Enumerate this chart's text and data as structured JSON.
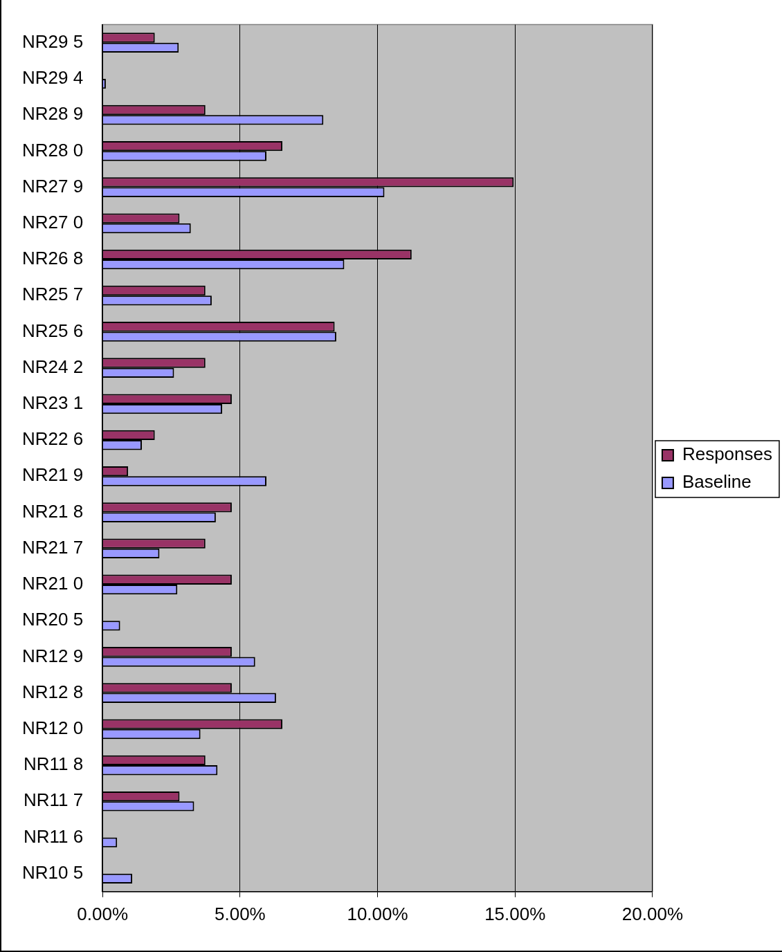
{
  "chart_data": {
    "type": "bar",
    "orientation": "horizontal",
    "categories": [
      "NR29 5",
      "NR29 4",
      "NR28 9",
      "NR28 0",
      "NR27 9",
      "NR27 0",
      "NR26 8",
      "NR25 7",
      "NR25 6",
      "NR24 2",
      "NR23 1",
      "NR22 6",
      "NR21 9",
      "NR21 8",
      "NR21 7",
      "NR21 0",
      "NR20 5",
      "NR12 9",
      "NR12 8",
      "NR12 0",
      "NR11 8",
      "NR11 7",
      "NR11 6",
      "NR10 5"
    ],
    "series": [
      {
        "name": "Responses",
        "color": "#993366",
        "values": [
          1.9,
          0,
          3.74,
          6.54,
          14.95,
          2.8,
          11.24,
          3.74,
          8.44,
          3.74,
          4.7,
          1.9,
          0.93,
          4.7,
          3.74,
          4.7,
          0,
          4.7,
          4.7,
          6.54,
          3.74,
          2.8,
          0,
          0
        ]
      },
      {
        "name": "Baseline",
        "color": "#9999ff",
        "values": [
          2.77,
          0.12,
          8.03,
          5.96,
          10.25,
          3.21,
          8.79,
          3.97,
          8.5,
          2.6,
          4.35,
          1.43,
          5.96,
          4.12,
          2.07,
          2.72,
          0.64,
          5.55,
          6.31,
          3.56,
          4.18,
          3.33,
          0.53,
          1.08
        ]
      }
    ],
    "xlim": [
      0,
      20
    ],
    "xticks": [
      {
        "value": 0,
        "label": "0.00%"
      },
      {
        "value": 5,
        "label": "5.00%"
      },
      {
        "value": 10,
        "label": "10.00%"
      },
      {
        "value": 15,
        "label": "15.00%"
      },
      {
        "value": 20,
        "label": "20.00%"
      }
    ],
    "grid": "x",
    "legend": "right"
  }
}
